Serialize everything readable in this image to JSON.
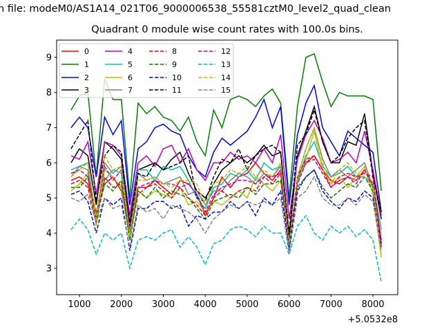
{
  "chart_data": {
    "type": "line",
    "suptitle": "n file: modeM0/AS1A14_021T06_9000006538_55581cztM0_level2_quad_clean",
    "title": "Quadrant 0 module wise count rates with 100.0s bins.",
    "xlabel": "",
    "ylabel": "",
    "x_offset_label": "+5.0532e8",
    "xlim": [
      456,
      8593
    ],
    "ylim": [
      2.25,
      9.49
    ],
    "xticks": [
      1000,
      2000,
      3000,
      4000,
      5000,
      6000,
      7000,
      8000
    ],
    "yticks": [
      3,
      4,
      5,
      6,
      7,
      8,
      9
    ],
    "legend_position": "top-left",
    "legend_columns": 4,
    "x": [
      800,
      1000,
      1200,
      1400,
      1600,
      1800,
      2000,
      2200,
      2400,
      2600,
      2800,
      3000,
      3200,
      3400,
      3600,
      3800,
      4000,
      4200,
      4400,
      4600,
      4800,
      5000,
      5200,
      5400,
      5600,
      5800,
      6000,
      6200,
      6400,
      6600,
      6800,
      7000,
      7200,
      7400,
      7600,
      7800,
      8000,
      8200
    ],
    "series": [
      {
        "name": "0",
        "color": "#ff0000",
        "style": "solid",
        "values": [
          5.5,
          5.6,
          5.4,
          4.6,
          5.4,
          5.6,
          5.2,
          4.0,
          5.3,
          5.3,
          5.5,
          5.3,
          5.1,
          5.5,
          5.4,
          5.1,
          4.5,
          5.0,
          5.6,
          5.3,
          5.6,
          5.7,
          6.0,
          5.7,
          5.5,
          5.8,
          3.8,
          5.5,
          6.0,
          6.2,
          5.8,
          5.5,
          5.4,
          5.6,
          5.5,
          5.8,
          5.4,
          3.8
        ]
      },
      {
        "name": "1",
        "color": "#008000",
        "style": "solid",
        "values": [
          7.5,
          7.9,
          8.0,
          5.6,
          8.4,
          7.8,
          7.8,
          5.0,
          7.7,
          7.4,
          7.6,
          7.3,
          7.2,
          6.9,
          7.3,
          6.6,
          6.2,
          7.5,
          7.0,
          7.8,
          7.9,
          7.8,
          7.6,
          7.9,
          8.1,
          7.7,
          5.0,
          7.6,
          9.0,
          9.1,
          8.3,
          7.6,
          8.0,
          7.9,
          7.9,
          7.9,
          7.8,
          5.2
        ]
      },
      {
        "name": "2",
        "color": "#0000ff",
        "style": "solid",
        "values": [
          7.0,
          7.3,
          7.0,
          5.6,
          7.3,
          6.8,
          7.2,
          4.8,
          6.4,
          6.6,
          7.0,
          7.1,
          6.9,
          6.8,
          6.2,
          5.8,
          5.6,
          6.3,
          6.7,
          6.5,
          6.7,
          6.9,
          7.3,
          7.8,
          7.0,
          7.6,
          4.8,
          6.8,
          7.7,
          8.2,
          7.0,
          6.6,
          6.2,
          6.9,
          6.7,
          6.5,
          6.3,
          4.6
        ]
      },
      {
        "name": "3",
        "color": "#000000",
        "style": "solid",
        "values": [
          6.0,
          6.4,
          6.2,
          4.8,
          6.6,
          6.4,
          6.1,
          4.3,
          5.8,
          5.9,
          6.0,
          5.8,
          6.1,
          6.3,
          5.7,
          5.2,
          5.0,
          5.4,
          5.8,
          6.0,
          6.2,
          6.0,
          6.2,
          6.5,
          6.2,
          6.3,
          3.9,
          6.2,
          6.9,
          7.6,
          6.6,
          6.0,
          6.0,
          6.6,
          6.5,
          7.4,
          5.7,
          4.4
        ]
      },
      {
        "name": "4",
        "color": "#bf00bf",
        "style": "solid",
        "values": [
          6.2,
          6.1,
          6.6,
          5.1,
          6.6,
          6.5,
          6.2,
          4.5,
          6.0,
          6.2,
          5.9,
          6.4,
          6.5,
          6.0,
          6.4,
          5.8,
          5.5,
          6.0,
          6.0,
          6.3,
          6.1,
          6.2,
          6.0,
          6.4,
          6.0,
          6.8,
          4.4,
          6.1,
          6.8,
          7.2,
          6.7,
          6.0,
          6.1,
          6.3,
          6.0,
          6.9,
          5.8,
          4.5
        ]
      },
      {
        "name": "5",
        "color": "#00bfbf",
        "style": "solid",
        "values": [
          5.8,
          5.9,
          6.0,
          4.4,
          5.5,
          5.8,
          5.7,
          4.0,
          5.8,
          5.8,
          5.5,
          5.9,
          5.8,
          5.9,
          5.5,
          5.0,
          4.7,
          5.3,
          5.4,
          5.7,
          5.6,
          5.8,
          5.5,
          6.0,
          5.8,
          5.9,
          3.6,
          5.5,
          6.2,
          6.6,
          5.9,
          5.6,
          5.7,
          5.9,
          5.6,
          5.6,
          5.4,
          4.1
        ]
      },
      {
        "name": "6",
        "color": "#bfbf00",
        "style": "solid",
        "values": [
          5.2,
          5.4,
          5.7,
          4.2,
          5.8,
          5.6,
          5.3,
          3.8,
          5.2,
          5.0,
          5.2,
          5.1,
          5.0,
          5.3,
          4.8,
          4.9,
          4.6,
          4.9,
          4.8,
          5.0,
          5.2,
          5.0,
          5.6,
          5.4,
          5.2,
          5.5,
          3.7,
          5.4,
          6.1,
          6.9,
          5.8,
          5.4,
          5.6,
          5.3,
          5.6,
          5.9,
          5.1,
          3.3
        ]
      },
      {
        "name": "7",
        "color": "#808080",
        "style": "solid",
        "values": [
          5.6,
          5.9,
          5.8,
          4.5,
          6.0,
          5.7,
          5.9,
          3.9,
          5.7,
          5.5,
          5.6,
          5.4,
          5.5,
          5.6,
          5.1,
          5.2,
          4.8,
          5.2,
          5.2,
          5.5,
          5.7,
          5.6,
          5.4,
          5.7,
          5.6,
          5.9,
          3.5,
          5.6,
          6.4,
          7.0,
          6.1,
          5.6,
          5.8,
          5.6,
          5.8,
          6.0,
          5.3,
          3.6
        ]
      },
      {
        "name": "8",
        "color": "#ff0000",
        "style": "dashed",
        "values": [
          5.4,
          5.5,
          5.3,
          4.3,
          5.6,
          5.3,
          5.4,
          3.9,
          5.1,
          5.3,
          5.4,
          5.2,
          5.0,
          5.3,
          5.0,
          4.8,
          4.5,
          5.0,
          5.2,
          5.0,
          5.2,
          5.3,
          5.2,
          5.6,
          5.4,
          5.7,
          3.7,
          5.6,
          6.1,
          6.2,
          5.8,
          5.3,
          5.6,
          5.7,
          5.6,
          5.7,
          5.6,
          3.7
        ]
      },
      {
        "name": "9",
        "color": "#008000",
        "style": "dashed",
        "values": [
          5.3,
          5.3,
          5.6,
          4.4,
          5.4,
          5.2,
          5.5,
          3.8,
          5.2,
          5.0,
          5.3,
          5.0,
          5.2,
          5.1,
          5.0,
          4.7,
          4.4,
          4.9,
          5.0,
          5.1,
          5.0,
          5.3,
          5.1,
          5.4,
          5.4,
          5.5,
          3.8,
          5.3,
          5.6,
          5.8,
          5.3,
          5.0,
          5.2,
          5.4,
          5.3,
          5.6,
          5.2,
          3.6
        ]
      },
      {
        "name": "10",
        "color": "#0000ff",
        "style": "dashed",
        "values": [
          5.1,
          5.2,
          4.9,
          4.0,
          5.0,
          4.8,
          5.0,
          3.5,
          4.7,
          4.7,
          4.9,
          4.9,
          4.7,
          4.8,
          4.2,
          4.5,
          4.4,
          4.6,
          4.6,
          4.9,
          4.7,
          4.9,
          4.5,
          5.0,
          4.8,
          5.2,
          3.6,
          5.2,
          5.6,
          5.8,
          5.2,
          4.9,
          4.7,
          5.0,
          4.9,
          5.2,
          5.0,
          3.7
        ]
      },
      {
        "name": "11",
        "color": "#000000",
        "style": "dashed",
        "values": [
          6.4,
          6.8,
          7.2,
          4.9,
          6.2,
          6.5,
          6.3,
          4.2,
          5.7,
          5.6,
          6.0,
          5.8,
          5.9,
          6.0,
          6.2,
          5.0,
          4.9,
          5.6,
          6.1,
          6.0,
          6.4,
          5.8,
          6.2,
          6.4,
          6.5,
          6.3,
          4.0,
          6.5,
          6.8,
          7.5,
          6.6,
          6.0,
          6.2,
          6.7,
          7.0,
          7.2,
          5.6,
          4.6
        ]
      },
      {
        "name": "12",
        "color": "#bf00bf",
        "style": "dashed",
        "values": [
          5.7,
          5.8,
          5.6,
          4.5,
          5.9,
          5.5,
          5.8,
          4.1,
          5.3,
          5.4,
          5.5,
          5.4,
          5.4,
          5.3,
          5.4,
          5.1,
          4.6,
          5.1,
          5.3,
          5.4,
          5.5,
          5.5,
          5.4,
          5.6,
          5.6,
          5.7,
          3.7,
          5.4,
          6.0,
          6.1,
          5.7,
          5.3,
          5.5,
          5.6,
          5.4,
          5.8,
          5.3,
          3.6
        ]
      },
      {
        "name": "13",
        "color": "#00bfbf",
        "style": "dashed",
        "values": [
          4.1,
          4.4,
          4.1,
          3.4,
          4.0,
          3.8,
          4.0,
          3.0,
          3.8,
          3.9,
          3.8,
          4.0,
          4.1,
          3.6,
          3.9,
          3.6,
          3.1,
          3.7,
          3.8,
          4.1,
          4.2,
          4.1,
          3.9,
          4.2,
          4.0,
          4.0,
          3.4,
          4.2,
          4.5,
          4.0,
          3.8,
          4.2,
          4.0,
          4.2,
          3.9,
          4.1,
          3.8,
          2.6
        ]
      },
      {
        "name": "14",
        "color": "#bfbf00",
        "style": "dashed",
        "values": [
          5.6,
          5.8,
          6.0,
          4.4,
          6.2,
          5.8,
          5.9,
          3.9,
          5.5,
          5.5,
          5.6,
          5.4,
          5.3,
          5.5,
          5.5,
          5.4,
          4.8,
          5.4,
          5.5,
          5.8,
          5.7,
          5.9,
          5.6,
          5.8,
          5.6,
          6.0,
          3.7,
          5.6,
          6.4,
          7.0,
          6.0,
          5.4,
          5.8,
          6.0,
          5.7,
          5.6,
          5.3,
          3.4
        ]
      },
      {
        "name": "15",
        "color": "#808080",
        "style": "dashed",
        "values": [
          5.0,
          4.9,
          5.1,
          4.3,
          5.0,
          4.7,
          4.8,
          3.6,
          4.8,
          4.6,
          4.7,
          4.4,
          4.8,
          4.7,
          4.6,
          4.4,
          4.0,
          4.4,
          4.6,
          4.8,
          4.7,
          4.9,
          4.8,
          4.9,
          4.8,
          5.0,
          3.4,
          5.0,
          5.2,
          5.6,
          5.0,
          4.8,
          4.8,
          5.0,
          4.8,
          5.1,
          4.9,
          3.5
        ]
      }
    ]
  }
}
